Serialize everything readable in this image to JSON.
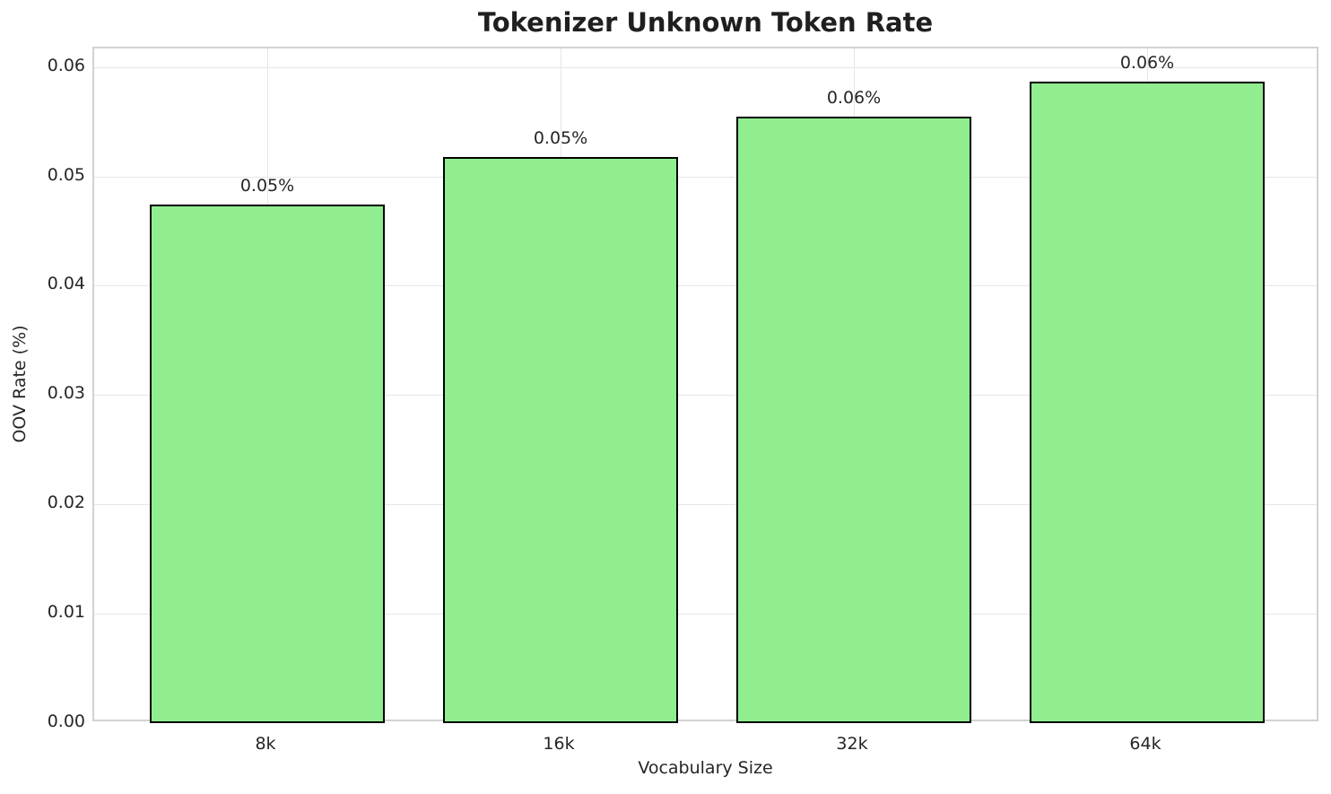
{
  "chart_data": {
    "type": "bar",
    "title": "Tokenizer Unknown Token Rate",
    "xlabel": "Vocabulary Size",
    "ylabel": "OOV Rate (%)",
    "categories": [
      "8k",
      "16k",
      "32k",
      "64k"
    ],
    "values": [
      0.0474,
      0.0518,
      0.0555,
      0.0587
    ],
    "bar_labels": [
      "0.05%",
      "0.05%",
      "0.06%",
      "0.06%"
    ],
    "ylim": [
      0,
      0.0617
    ],
    "ytick_values": [
      0,
      0.01,
      0.02,
      0.03,
      0.04,
      0.05,
      0.06
    ],
    "ytick_labels": [
      "0.00",
      "0.01",
      "0.02",
      "0.03",
      "0.04",
      "0.05",
      "0.06"
    ],
    "grid": true,
    "legend": false,
    "colors": {
      "bar_fill": "#90ee90",
      "bar_edge": "#000000",
      "grid": "#e6e6e6",
      "spine": "#d2d2d2",
      "text": "#262626",
      "background": "#ffffff"
    }
  }
}
